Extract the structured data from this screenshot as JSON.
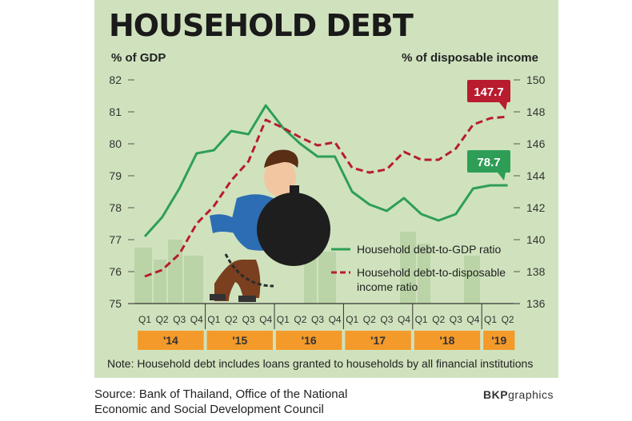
{
  "header": {
    "title": "HOUSEHOLD DEBT"
  },
  "axes": {
    "left_unit": "% of GDP",
    "right_unit": "% of disposable income"
  },
  "note": "Note: Household debt includes loans granted to households by all financial institutions",
  "source": "Source: Bank of Thailand, Office of the National Economic and Social Development Council",
  "brand": {
    "bold": "BKP",
    "rest": "graphics"
  },
  "colors": {
    "gdp_series": "#2e9e57",
    "income_series": "#b81c2e",
    "year_box": "#f39a2a",
    "panel": "#cfe2bd"
  },
  "callouts": {
    "gdp_last": "78.7",
    "income_last": "147.7"
  },
  "chart_data": {
    "type": "line",
    "title": "HOUSEHOLD DEBT",
    "x": [
      "Q1 '14",
      "Q2 '14",
      "Q3 '14",
      "Q4 '14",
      "Q1 '15",
      "Q2 '15",
      "Q3 '15",
      "Q4 '15",
      "Q1 '16",
      "Q2 '16",
      "Q3 '16",
      "Q4 '16",
      "Q1 '17",
      "Q2 '17",
      "Q3 '17",
      "Q4 '17",
      "Q1 '18",
      "Q2 '18",
      "Q3 '18",
      "Q4 '18",
      "Q1 '19",
      "Q2 '19"
    ],
    "quarter_labels": [
      "Q1",
      "Q2",
      "Q3",
      "Q4",
      "Q1",
      "Q2",
      "Q3",
      "Q4",
      "Q1",
      "Q2",
      "Q3",
      "Q4",
      "Q1",
      "Q2",
      "Q3",
      "Q4",
      "Q1",
      "Q2",
      "Q3",
      "Q4",
      "Q1",
      "Q2"
    ],
    "years": [
      {
        "label": "'14",
        "quarters": 4
      },
      {
        "label": "'15",
        "quarters": 4
      },
      {
        "label": "'16",
        "quarters": 4
      },
      {
        "label": "'17",
        "quarters": 4
      },
      {
        "label": "'18",
        "quarters": 4
      },
      {
        "label": "'19",
        "quarters": 2
      }
    ],
    "ylabel_left": "% of GDP",
    "ylabel_right": "% of disposable income",
    "ylim_left": [
      75,
      82
    ],
    "ylim_right": [
      136,
      150
    ],
    "yticks_left": [
      75,
      76,
      77,
      78,
      79,
      80,
      81,
      82
    ],
    "yticks_right": [
      136,
      138,
      140,
      142,
      144,
      146,
      148,
      150
    ],
    "series": [
      {
        "name": "Household debt-to-GDP ratio",
        "axis": "left",
        "style": "solid",
        "values": [
          77.1,
          77.7,
          78.6,
          79.7,
          79.8,
          80.4,
          80.3,
          81.2,
          80.5,
          80.0,
          79.6,
          79.6,
          78.5,
          78.1,
          77.9,
          78.3,
          77.8,
          77.6,
          77.8,
          78.6,
          78.7,
          78.7
        ]
      },
      {
        "name": "Household debt-to-disposable income ratio",
        "axis": "right",
        "style": "dashed",
        "values": [
          137.7,
          138.1,
          139.1,
          141.0,
          142.1,
          143.7,
          144.9,
          147.5,
          147.0,
          146.4,
          145.9,
          146.1,
          144.5,
          144.2,
          144.4,
          145.5,
          145.0,
          145.0,
          145.7,
          147.2,
          147.6,
          147.7
        ]
      }
    ],
    "grid": false,
    "legend": "bottom-right"
  }
}
